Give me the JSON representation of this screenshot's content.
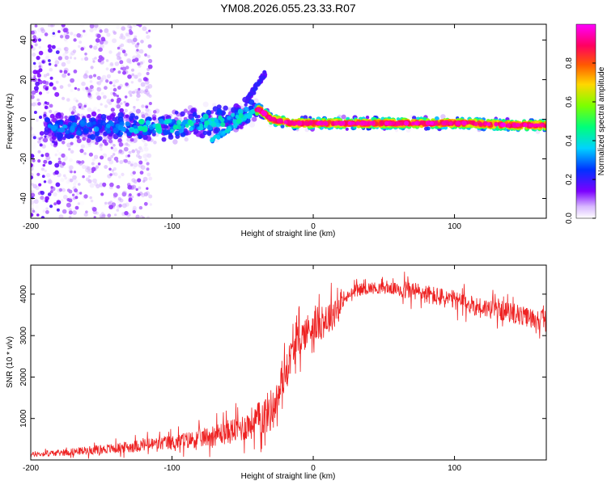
{
  "chart_data": [
    {
      "type": "heatmap",
      "title": "YM08.2026.055.23.33.R07",
      "xlabel": "Height of straight line (km)",
      "ylabel": "Frequency (Hz)",
      "xlim": [
        -200,
        165
      ],
      "ylim": [
        -50,
        48
      ],
      "x_ticks": [
        -200,
        -100,
        0,
        100
      ],
      "y_ticks": [
        -40,
        -20,
        0,
        20,
        40
      ],
      "colorbar": {
        "label": "Normalized spectral amplitude",
        "range": [
          0,
          1
        ],
        "ticks": [
          0.0,
          0.2,
          0.4,
          0.6,
          0.8
        ],
        "colormap": "rainbow",
        "colors": [
          "#ffffff",
          "#d8b8ff",
          "#7b00ff",
          "#0032ff",
          "#00d2ff",
          "#00ff7a",
          "#7cff00",
          "#ffd700",
          "#ff5a00",
          "#ff0060",
          "#ff00ff"
        ]
      },
      "ridge": {
        "description": "dominant frequency track",
        "x": [
          -175,
          -150,
          -125,
          -100,
          -80,
          -60,
          -45,
          -38,
          -30,
          -15,
          0,
          20,
          50,
          80,
          110,
          140,
          165
        ],
        "y": [
          -4,
          -4,
          -4,
          -3,
          -2,
          0,
          3,
          5,
          0,
          -2,
          -2,
          -2,
          -2,
          -2,
          -2,
          -3,
          -3
        ]
      }
    },
    {
      "type": "line",
      "xlabel": "Height of straight line (km)",
      "ylabel": "SNR (10 * v/v)",
      "xlim": [
        -200,
        165
      ],
      "ylim": [
        0,
        4700
      ],
      "x_ticks": [
        -200,
        -100,
        0,
        100
      ],
      "y_ticks": [
        1000,
        2000,
        3000,
        4000
      ],
      "series": [
        {
          "name": "SNR",
          "color": "#ee2222",
          "x": [
            -200,
            -180,
            -160,
            -140,
            -120,
            -100,
            -80,
            -60,
            -50,
            -40,
            -30,
            -25,
            -20,
            -15,
            -10,
            -5,
            0,
            5,
            10,
            15,
            20,
            25,
            30,
            40,
            50,
            60,
            70,
            80,
            90,
            100,
            110,
            120,
            130,
            140,
            150,
            160,
            165
          ],
          "y": [
            130,
            170,
            230,
            280,
            360,
            420,
            520,
            680,
            780,
            950,
            1200,
            1500,
            2100,
            2600,
            2900,
            3100,
            3250,
            3300,
            3400,
            3600,
            3800,
            3950,
            4100,
            4150,
            4150,
            4120,
            4080,
            4000,
            3920,
            3850,
            3750,
            3680,
            3620,
            3550,
            3450,
            3400,
            3380
          ]
        }
      ]
    }
  ]
}
